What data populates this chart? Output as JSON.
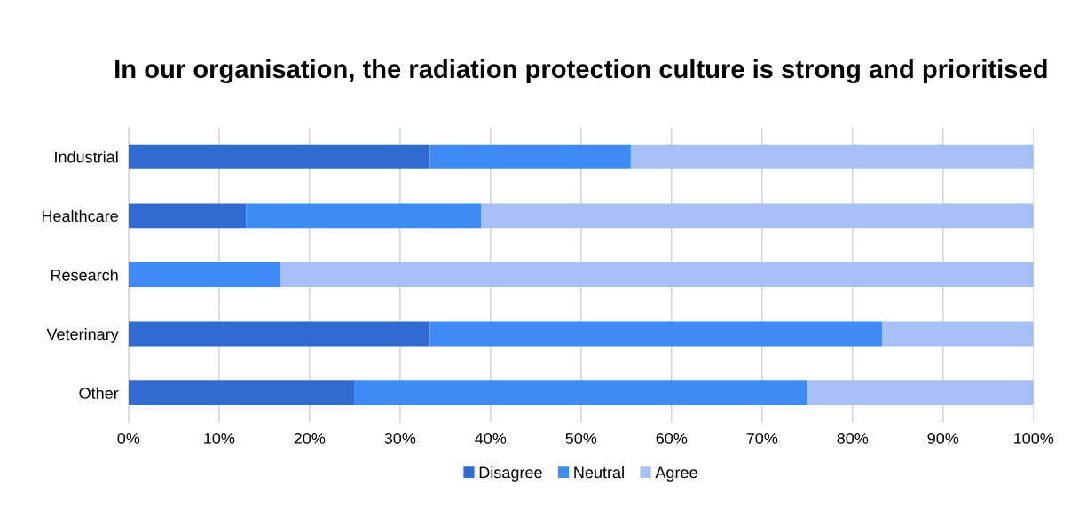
{
  "chart_data": {
    "type": "bar",
    "orientation": "horizontal",
    "stacked": true,
    "title": "In our organisation, the radiation protection culture is strong and prioritised",
    "categories": [
      "Industrial",
      "Healthcare",
      "Research",
      "Veterinary",
      "Other"
    ],
    "series": [
      {
        "name": "Disagree",
        "color": "#2f6bd0",
        "values": [
          33.3,
          13,
          0,
          33.3,
          25
        ]
      },
      {
        "name": "Neutral",
        "color": "#3f8bf5",
        "values": [
          22.2,
          26,
          16.7,
          50,
          50
        ]
      },
      {
        "name": "Agree",
        "color": "#a6bff4",
        "values": [
          44.5,
          61,
          83.3,
          16.7,
          25
        ]
      }
    ],
    "xlim": [
      0,
      100
    ],
    "xticks": [
      {
        "value": 0,
        "label": "0%"
      },
      {
        "value": 10,
        "label": "10%"
      },
      {
        "value": 20,
        "label": "20%"
      },
      {
        "value": 30,
        "label": "30%"
      },
      {
        "value": 40,
        "label": "40%"
      },
      {
        "value": 50,
        "label": "50%"
      },
      {
        "value": 60,
        "label": "60%"
      },
      {
        "value": 70,
        "label": "70%"
      },
      {
        "value": 80,
        "label": "80%"
      },
      {
        "value": 90,
        "label": "90%"
      },
      {
        "value": 100,
        "label": "100%"
      }
    ],
    "grid": "x",
    "legend": "bottom"
  }
}
